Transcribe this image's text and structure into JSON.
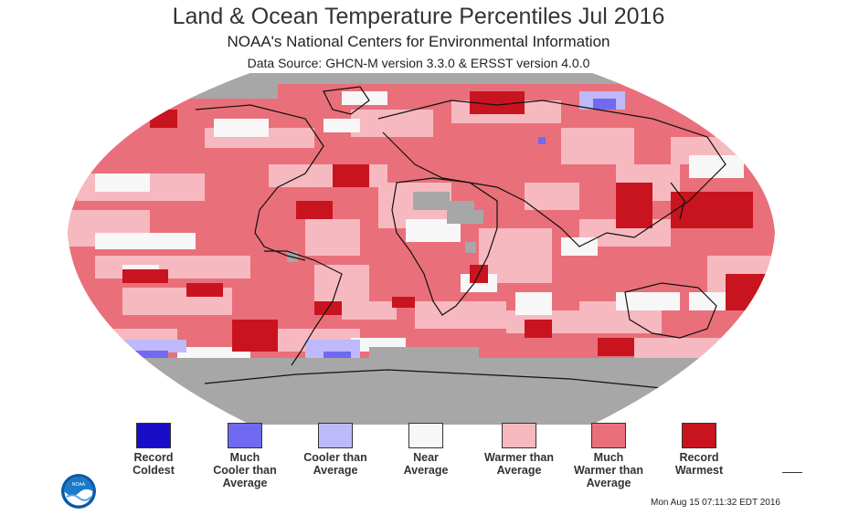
{
  "title": "Land & Ocean Temperature Percentiles Jul 2016",
  "subtitle": "NOAA's National Centers for Environmental Information",
  "data_source": "Data Source: GHCN-M version 3.3.0 & ERSST version 4.0.0",
  "timestamp": "Mon Aug 15 07:11:32 EDT 2016",
  "logo": {
    "text": "NOAA",
    "icon": "noaa-logo-icon"
  },
  "legend": [
    {
      "lines": [
        "Record",
        "Coldest"
      ],
      "color": "#1a0dc8"
    },
    {
      "lines": [
        "Much",
        "Cooler than",
        "Average"
      ],
      "color": "#6f6af0"
    },
    {
      "lines": [
        "Cooler than",
        "Average"
      ],
      "color": "#bdb9fb"
    },
    {
      "lines": [
        "Near",
        "Average"
      ],
      "color": "#f7f7f7"
    },
    {
      "lines": [
        "Warmer than",
        "Average"
      ],
      "color": "#f7b9c0"
    },
    {
      "lines": [
        "Much",
        "Warmer than",
        "Average"
      ],
      "color": "#e9707a"
    },
    {
      "lines": [
        "Record",
        "Warmest"
      ],
      "color": "#c8141e"
    }
  ],
  "colors": {
    "no_data": "#a7a7a7",
    "coastline": "#111111"
  }
}
